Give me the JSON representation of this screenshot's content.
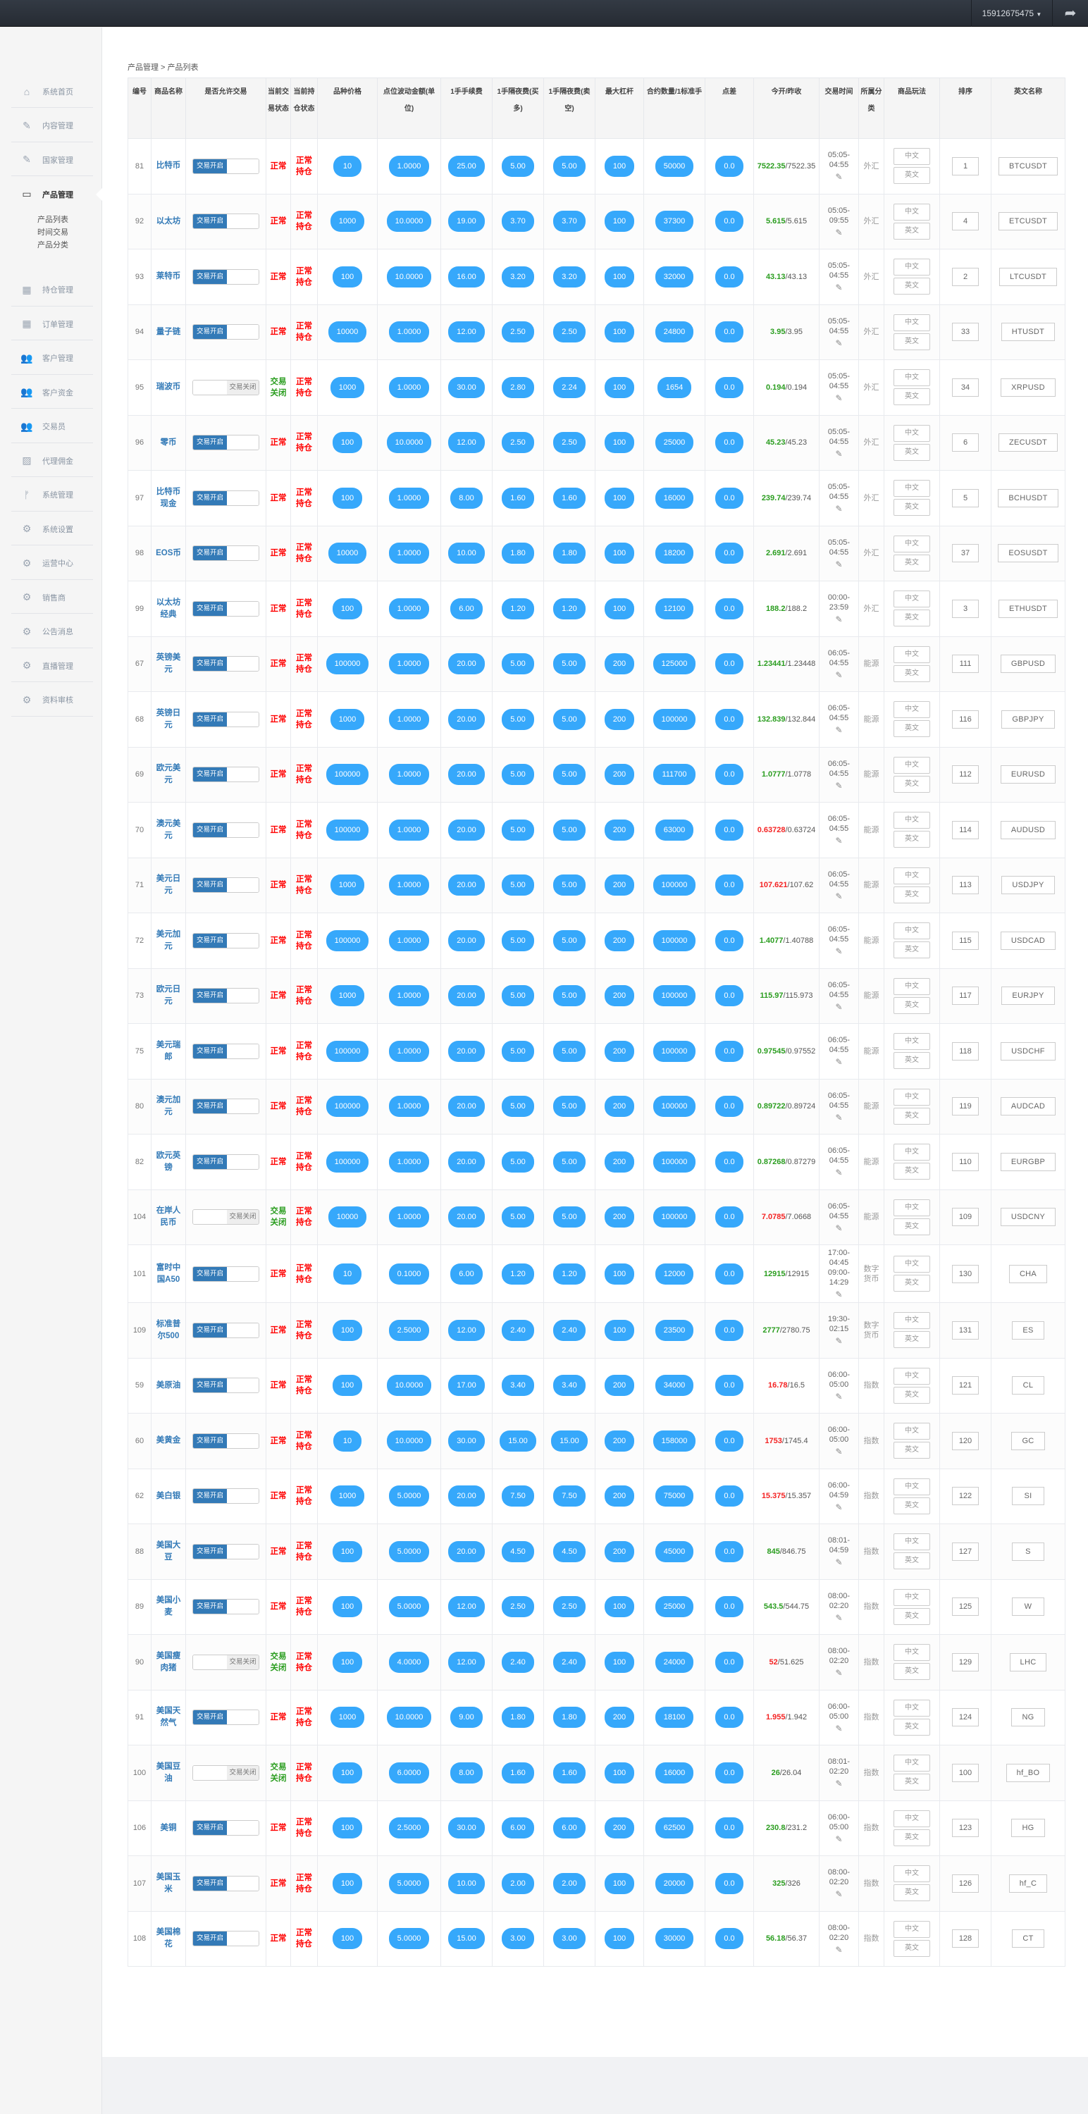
{
  "header": {
    "username": "15912675475",
    "dropdown_icon": "caret-down-icon",
    "forward_icon": "share-icon"
  },
  "sidebar": {
    "items": [
      {
        "label": "系统首页",
        "icon": "home-icon"
      },
      {
        "label": "内容管理",
        "icon": "edit-icon"
      },
      {
        "label": "国家管理",
        "icon": "edit-icon"
      },
      {
        "label": "产品管理",
        "icon": "calendar-icon",
        "active": true
      },
      {
        "label": "持仓管理",
        "icon": "grid-icon"
      },
      {
        "label": "订单管理",
        "icon": "grid-icon"
      },
      {
        "label": "客户管理",
        "icon": "users-icon"
      },
      {
        "label": "客户资金",
        "icon": "users-icon"
      },
      {
        "label": "交易员",
        "icon": "users-icon"
      },
      {
        "label": "代理佣金",
        "icon": "image-icon"
      },
      {
        "label": "系统管理",
        "icon": "branch-icon"
      },
      {
        "label": "系统设置",
        "icon": "gear-icon"
      },
      {
        "label": "运营中心",
        "icon": "gear-icon"
      },
      {
        "label": "销售商",
        "icon": "gear-icon"
      },
      {
        "label": "公告消息",
        "icon": "gear-icon"
      },
      {
        "label": "直播管理",
        "icon": "gear-icon"
      },
      {
        "label": "资料审核",
        "icon": "gear-icon"
      }
    ],
    "sub_items": [
      "产品列表",
      "时间交易",
      "产品分类"
    ]
  },
  "breadcrumb": "产品管理 > 产品列表",
  "table": {
    "headers": [
      "编号",
      "商品名称",
      "是否允许交易",
      "当前交易状态",
      "当前持仓状态",
      "品种价格",
      "点位波动金额(单位)",
      "1手手续费",
      "1手隔夜费(买多)",
      "1手隔夜费(卖空)",
      "最大杠杆",
      "合约数量/1标准手",
      "点差",
      "今开/昨收",
      "交易时间",
      "所属分类",
      "商品玩法",
      "排序",
      "英文名称"
    ],
    "labels": {
      "on": "交易开启",
      "off": "交易关闭",
      "normal": "正常",
      "closed": "交易关闭",
      "hold": "正常持仓",
      "zh": "中文",
      "en": "英文",
      "edit_icon": "pencil-icon"
    },
    "colors": {
      "up": "#2a9d1f",
      "down": "#f42323",
      "pill": "#36a8fb",
      "link": "#337ab7"
    },
    "rows": [
      {
        "id": "81",
        "name": "比特币",
        "on": true,
        "price": "10",
        "point": "1.0000",
        "fee": "25.00",
        "nb": "5.00",
        "ns": "5.00",
        "lev": "100",
        "qty": "50000",
        "spread": "0.0",
        "open": "7522.35",
        "prev": "7522.35",
        "up": true,
        "time": "05:05-04:55",
        "cat": "外汇",
        "sort": "1",
        "en": "BTCUSDT"
      },
      {
        "id": "92",
        "name": "以太坊",
        "on": true,
        "price": "1000",
        "point": "10.0000",
        "fee": "19.00",
        "nb": "3.70",
        "ns": "3.70",
        "lev": "100",
        "qty": "37300",
        "spread": "0.0",
        "open": "5.615",
        "prev": "5.615",
        "up": true,
        "time": "05:05-09:55",
        "cat": "外汇",
        "sort": "4",
        "en": "ETCUSDT"
      },
      {
        "id": "93",
        "name": "莱特币",
        "on": true,
        "price": "100",
        "point": "10.0000",
        "fee": "16.00",
        "nb": "3.20",
        "ns": "3.20",
        "lev": "100",
        "qty": "32000",
        "spread": "0.0",
        "open": "43.13",
        "prev": "43.13",
        "up": true,
        "time": "05:05-04:55",
        "cat": "外汇",
        "sort": "2",
        "en": "LTCUSDT"
      },
      {
        "id": "94",
        "name": "量子链",
        "on": true,
        "price": "10000",
        "point": "1.0000",
        "fee": "12.00",
        "nb": "2.50",
        "ns": "2.50",
        "lev": "100",
        "qty": "24800",
        "spread": "0.0",
        "open": "3.95",
        "prev": "3.95",
        "up": true,
        "time": "05:05-04:55",
        "cat": "外汇",
        "sort": "33",
        "en": "HTUSDT"
      },
      {
        "id": "95",
        "name": "瑞波币",
        "on": false,
        "price": "1000",
        "point": "1.0000",
        "fee": "30.00",
        "nb": "2.80",
        "ns": "2.24",
        "lev": "100",
        "qty": "1654",
        "spread": "0.0",
        "open": "0.194",
        "prev": "0.194",
        "up": true,
        "time": "05:05-04:55",
        "cat": "外汇",
        "sort": "34",
        "en": "XRPUSD"
      },
      {
        "id": "96",
        "name": "零币",
        "on": true,
        "price": "100",
        "point": "10.0000",
        "fee": "12.00",
        "nb": "2.50",
        "ns": "2.50",
        "lev": "100",
        "qty": "25000",
        "spread": "0.0",
        "open": "45.23",
        "prev": "45.23",
        "up": true,
        "time": "05:05-04:55",
        "cat": "外汇",
        "sort": "6",
        "en": "ZECUSDT"
      },
      {
        "id": "97",
        "name": "比特币现金",
        "on": true,
        "price": "100",
        "point": "1.0000",
        "fee": "8.00",
        "nb": "1.60",
        "ns": "1.60",
        "lev": "100",
        "qty": "16000",
        "spread": "0.0",
        "open": "239.74",
        "prev": "239.74",
        "up": true,
        "time": "05:05-04:55",
        "cat": "外汇",
        "sort": "5",
        "en": "BCHUSDT"
      },
      {
        "id": "98",
        "name": "EOS币",
        "on": true,
        "price": "10000",
        "point": "1.0000",
        "fee": "10.00",
        "nb": "1.80",
        "ns": "1.80",
        "lev": "100",
        "qty": "18200",
        "spread": "0.0",
        "open": "2.691",
        "prev": "2.691",
        "up": true,
        "time": "05:05-04:55",
        "cat": "外汇",
        "sort": "37",
        "en": "EOSUSDT"
      },
      {
        "id": "99",
        "name": "以太坊经典",
        "on": true,
        "price": "100",
        "point": "1.0000",
        "fee": "6.00",
        "nb": "1.20",
        "ns": "1.20",
        "lev": "100",
        "qty": "12100",
        "spread": "0.0",
        "open": "188.2",
        "prev": "188.2",
        "up": true,
        "time": "00:00-23:59",
        "cat": "外汇",
        "sort": "3",
        "en": "ETHUSDT"
      },
      {
        "id": "67",
        "name": "英镑美元",
        "on": true,
        "price": "100000",
        "point": "1.0000",
        "fee": "20.00",
        "nb": "5.00",
        "ns": "5.00",
        "lev": "200",
        "qty": "125000",
        "spread": "0.0",
        "open": "1.23441",
        "prev": "1.23448",
        "up": true,
        "time": "06:05-04:55",
        "cat": "能源",
        "sort": "111",
        "en": "GBPUSD"
      },
      {
        "id": "68",
        "name": "英镑日元",
        "on": true,
        "price": "1000",
        "point": "1.0000",
        "fee": "20.00",
        "nb": "5.00",
        "ns": "5.00",
        "lev": "200",
        "qty": "100000",
        "spread": "0.0",
        "open": "132.839",
        "prev": "132.844",
        "up": true,
        "time": "06:05-04:55",
        "cat": "能源",
        "sort": "116",
        "en": "GBPJPY"
      },
      {
        "id": "69",
        "name": "欧元美元",
        "on": true,
        "price": "100000",
        "point": "1.0000",
        "fee": "20.00",
        "nb": "5.00",
        "ns": "5.00",
        "lev": "200",
        "qty": "111700",
        "spread": "0.0",
        "open": "1.0777",
        "prev": "1.0778",
        "up": true,
        "time": "06:05-04:55",
        "cat": "能源",
        "sort": "112",
        "en": "EURUSD"
      },
      {
        "id": "70",
        "name": "澳元美元",
        "on": true,
        "price": "100000",
        "point": "1.0000",
        "fee": "20.00",
        "nb": "5.00",
        "ns": "5.00",
        "lev": "200",
        "qty": "63000",
        "spread": "0.0",
        "open": "0.63728",
        "prev": "0.63724",
        "up": false,
        "time": "06:05-04:55",
        "cat": "能源",
        "sort": "114",
        "en": "AUDUSD"
      },
      {
        "id": "71",
        "name": "美元日元",
        "on": true,
        "price": "1000",
        "point": "1.0000",
        "fee": "20.00",
        "nb": "5.00",
        "ns": "5.00",
        "lev": "200",
        "qty": "100000",
        "spread": "0.0",
        "open": "107.621",
        "prev": "107.62",
        "up": false,
        "time": "06:05-04:55",
        "cat": "能源",
        "sort": "113",
        "en": "USDJPY"
      },
      {
        "id": "72",
        "name": "美元加元",
        "on": true,
        "price": "100000",
        "point": "1.0000",
        "fee": "20.00",
        "nb": "5.00",
        "ns": "5.00",
        "lev": "200",
        "qty": "100000",
        "spread": "0.0",
        "open": "1.4077",
        "prev": "1.40788",
        "up": true,
        "time": "06:05-04:55",
        "cat": "能源",
        "sort": "115",
        "en": "USDCAD"
      },
      {
        "id": "73",
        "name": "欧元日元",
        "on": true,
        "price": "1000",
        "point": "1.0000",
        "fee": "20.00",
        "nb": "5.00",
        "ns": "5.00",
        "lev": "200",
        "qty": "100000",
        "spread": "0.0",
        "open": "115.97",
        "prev": "115.973",
        "up": true,
        "time": "06:05-04:55",
        "cat": "能源",
        "sort": "117",
        "en": "EURJPY"
      },
      {
        "id": "75",
        "name": "美元瑞郎",
        "on": true,
        "price": "100000",
        "point": "1.0000",
        "fee": "20.00",
        "nb": "5.00",
        "ns": "5.00",
        "lev": "200",
        "qty": "100000",
        "spread": "0.0",
        "open": "0.97545",
        "prev": "0.97552",
        "up": true,
        "time": "06:05-04:55",
        "cat": "能源",
        "sort": "118",
        "en": "USDCHF"
      },
      {
        "id": "80",
        "name": "澳元加元",
        "on": true,
        "price": "100000",
        "point": "1.0000",
        "fee": "20.00",
        "nb": "5.00",
        "ns": "5.00",
        "lev": "200",
        "qty": "100000",
        "spread": "0.0",
        "open": "0.89722",
        "prev": "0.89724",
        "up": true,
        "time": "06:05-04:55",
        "cat": "能源",
        "sort": "119",
        "en": "AUDCAD"
      },
      {
        "id": "82",
        "name": "欧元英镑",
        "on": true,
        "price": "100000",
        "point": "1.0000",
        "fee": "20.00",
        "nb": "5.00",
        "ns": "5.00",
        "lev": "200",
        "qty": "100000",
        "spread": "0.0",
        "open": "0.87268",
        "prev": "0.87279",
        "up": true,
        "time": "06:05-04:55",
        "cat": "能源",
        "sort": "110",
        "en": "EURGBP"
      },
      {
        "id": "104",
        "name": "在岸人民币",
        "on": false,
        "price": "10000",
        "point": "1.0000",
        "fee": "20.00",
        "nb": "5.00",
        "ns": "5.00",
        "lev": "200",
        "qty": "100000",
        "spread": "0.0",
        "open": "7.0785",
        "prev": "7.0668",
        "up": false,
        "time": "06:05-04:55",
        "cat": "能源",
        "sort": "109",
        "en": "USDCNY"
      },
      {
        "id": "101",
        "name": "富时中国A50",
        "on": true,
        "price": "10",
        "point": "0.1000",
        "fee": "6.00",
        "nb": "1.20",
        "ns": "1.20",
        "lev": "100",
        "qty": "12000",
        "spread": "0.0",
        "open": "12915",
        "prev": "12915",
        "up": true,
        "time": "17:00-04:45 09:00-14:29",
        "cat": "数字货币",
        "sort": "130",
        "en": "CHA"
      },
      {
        "id": "109",
        "name": "标准普尔500",
        "on": true,
        "price": "100",
        "point": "2.5000",
        "fee": "12.00",
        "nb": "2.40",
        "ns": "2.40",
        "lev": "100",
        "qty": "23500",
        "spread": "0.0",
        "open": "2777",
        "prev": "2780.75",
        "up": true,
        "time": "19:30-02:15",
        "cat": "数字货币",
        "sort": "131",
        "en": "ES"
      },
      {
        "id": "59",
        "name": "美原油",
        "on": true,
        "price": "100",
        "point": "10.0000",
        "fee": "17.00",
        "nb": "3.40",
        "ns": "3.40",
        "lev": "200",
        "qty": "34000",
        "spread": "0.0",
        "open": "16.78",
        "prev": "16.5",
        "up": false,
        "time": "06:00-05:00",
        "cat": "指数",
        "sort": "121",
        "en": "CL"
      },
      {
        "id": "60",
        "name": "美黄金",
        "on": true,
        "price": "10",
        "point": "10.0000",
        "fee": "30.00",
        "nb": "15.00",
        "ns": "15.00",
        "lev": "200",
        "qty": "158000",
        "spread": "0.0",
        "open": "1753",
        "prev": "1745.4",
        "up": false,
        "time": "06:00-05:00",
        "cat": "指数",
        "sort": "120",
        "en": "GC"
      },
      {
        "id": "62",
        "name": "美白银",
        "on": true,
        "price": "1000",
        "point": "5.0000",
        "fee": "20.00",
        "nb": "7.50",
        "ns": "7.50",
        "lev": "200",
        "qty": "75000",
        "spread": "0.0",
        "open": "15.375",
        "prev": "15.357",
        "up": false,
        "time": "06:00-04:59",
        "cat": "指数",
        "sort": "122",
        "en": "SI"
      },
      {
        "id": "88",
        "name": "美国大豆",
        "on": true,
        "price": "100",
        "point": "5.0000",
        "fee": "20.00",
        "nb": "4.50",
        "ns": "4.50",
        "lev": "200",
        "qty": "45000",
        "spread": "0.0",
        "open": "845",
        "prev": "846.75",
        "up": true,
        "time": "08:01-04:59",
        "cat": "指数",
        "sort": "127",
        "en": "S"
      },
      {
        "id": "89",
        "name": "美国小麦",
        "on": true,
        "price": "100",
        "point": "5.0000",
        "fee": "12.00",
        "nb": "2.50",
        "ns": "2.50",
        "lev": "100",
        "qty": "25000",
        "spread": "0.0",
        "open": "543.5",
        "prev": "544.75",
        "up": true,
        "time": "08:00-02:20",
        "cat": "指数",
        "sort": "125",
        "en": "W"
      },
      {
        "id": "90",
        "name": "美国瘦肉猪",
        "on": false,
        "price": "100",
        "point": "4.0000",
        "fee": "12.00",
        "nb": "2.40",
        "ns": "2.40",
        "lev": "100",
        "qty": "24000",
        "spread": "0.0",
        "open": "52",
        "prev": "51.625",
        "up": false,
        "time": "08:00-02:20",
        "cat": "指数",
        "sort": "129",
        "en": "LHC"
      },
      {
        "id": "91",
        "name": "美国天然气",
        "on": true,
        "price": "1000",
        "point": "10.0000",
        "fee": "9.00",
        "nb": "1.80",
        "ns": "1.80",
        "lev": "200",
        "qty": "18100",
        "spread": "0.0",
        "open": "1.955",
        "prev": "1.942",
        "up": false,
        "time": "06:00-05:00",
        "cat": "指数",
        "sort": "124",
        "en": "NG"
      },
      {
        "id": "100",
        "name": "美国豆油",
        "on": false,
        "price": "100",
        "point": "6.0000",
        "fee": "8.00",
        "nb": "1.60",
        "ns": "1.60",
        "lev": "100",
        "qty": "16000",
        "spread": "0.0",
        "open": "26",
        "prev": "26.04",
        "up": true,
        "time": "08:01-02:20",
        "cat": "指数",
        "sort": "100",
        "en": "hf_BO"
      },
      {
        "id": "106",
        "name": "美铜",
        "on": true,
        "price": "100",
        "point": "2.5000",
        "fee": "30.00",
        "nb": "6.00",
        "ns": "6.00",
        "lev": "200",
        "qty": "62500",
        "spread": "0.0",
        "open": "230.8",
        "prev": "231.2",
        "up": true,
        "time": "06:00-05:00",
        "cat": "指数",
        "sort": "123",
        "en": "HG"
      },
      {
        "id": "107",
        "name": "美国玉米",
        "on": true,
        "price": "100",
        "point": "5.0000",
        "fee": "10.00",
        "nb": "2.00",
        "ns": "2.00",
        "lev": "100",
        "qty": "20000",
        "spread": "0.0",
        "open": "325",
        "prev": "326",
        "up": true,
        "time": "08:00-02:20",
        "cat": "指数",
        "sort": "126",
        "en": "hf_C"
      },
      {
        "id": "108",
        "name": "美国棉花",
        "on": true,
        "price": "100",
        "point": "5.0000",
        "fee": "15.00",
        "nb": "3.00",
        "ns": "3.00",
        "lev": "100",
        "qty": "30000",
        "spread": "0.0",
        "open": "56.18",
        "prev": "56.37",
        "up": true,
        "time": "08:00-02:20",
        "cat": "指数",
        "sort": "128",
        "en": "CT"
      }
    ]
  }
}
